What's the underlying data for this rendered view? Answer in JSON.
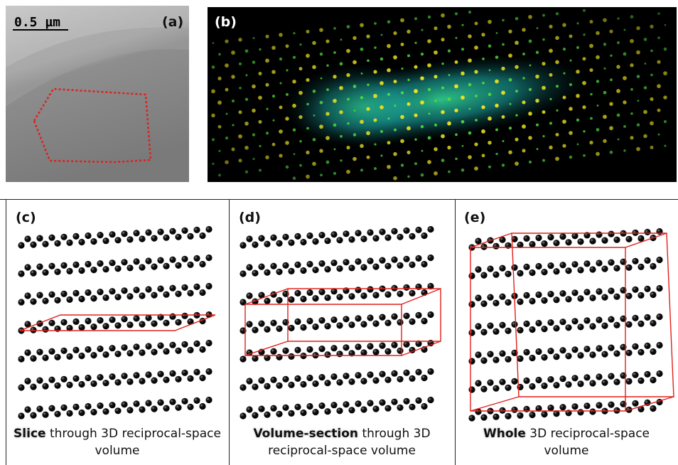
{
  "panels": [
    {
      "label": "(a)",
      "scale_bar": "0.5 µm"
    },
    {
      "label": "(b)"
    },
    {
      "label": "(c)",
      "caption_bold": "Slice",
      "caption_rest": "through 3D reciprocal-space volume"
    },
    {
      "label": "(d)",
      "caption_bold": "Volume-section",
      "caption_rest": "through 3D reciprocal-space volume"
    },
    {
      "label": "(e)",
      "caption_bold": "Whole",
      "caption_rest": "3D reciprocal-space volume"
    }
  ]
}
